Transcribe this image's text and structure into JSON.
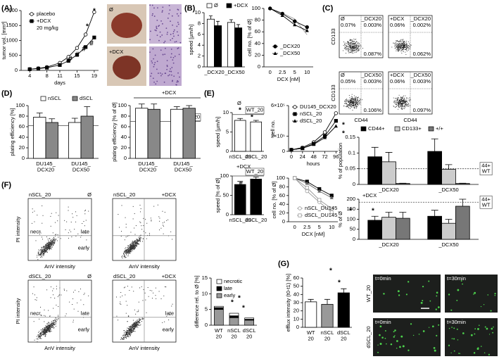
{
  "panel_labels": [
    "(A)",
    "(B)",
    "(C)",
    "(D)",
    "(E)",
    "(F)",
    "(G)"
  ],
  "photos_a": {
    "labels": [
      "Ø",
      "+DCX"
    ]
  },
  "flow_c": {
    "ylabel": "CD133",
    "xlabel": "CD44",
    "plots": [
      {
        "tag": "Ø",
        "name": "_DCX20",
        "quadrants": [
          "0.07%",
          "0.003%",
          "0.087%"
        ]
      },
      {
        "tag": "+DCX",
        "name": "_DCX20",
        "quadrants": [
          "0.06%",
          "0.002%",
          "0.062%"
        ]
      },
      {
        "tag": "Ø",
        "name": "_DCX50",
        "quadrants": [
          "0.05%",
          "0.003%",
          "0.106%"
        ]
      },
      {
        "tag": "+DCX",
        "name": "_DCX50",
        "quadrants": [
          "0.06%",
          "0.003%",
          "0.097%"
        ]
      }
    ]
  },
  "flow_f": {
    "ylabel": "PI intensity",
    "xlabel": "AnV intensity",
    "plots": [
      {
        "name": "nSCL_20",
        "tag": "Ø",
        "regions": {
          "necrotic": "necr.",
          "late": "late",
          "early": "early"
        }
      },
      {
        "name": "nSCL_20",
        "tag": "+DCX"
      },
      {
        "name": "dSCL_20",
        "tag": "Ø",
        "regions": {
          "necrotic": "necr.",
          "late": "late",
          "early": "early"
        }
      },
      {
        "name": "dSCL_20",
        "tag": "+DCX",
        "regions": {
          "late": "late",
          "early": "early"
        }
      }
    ]
  },
  "micrographs_g": {
    "times": [
      "t=0min",
      "t=30min"
    ],
    "rows": [
      "WT_20",
      "dSCL_20"
    ]
  },
  "chart_data": [
    {
      "type": "line",
      "xlabel": "days",
      "ylabel": "tumor vol. [mm³]",
      "x": [
        4,
        6,
        8,
        11,
        13,
        15,
        17,
        19
      ],
      "xlim": [
        2,
        20
      ],
      "xticks": [
        4,
        8,
        11,
        15,
        19
      ],
      "ylim": [
        0,
        2000
      ],
      "yticks": [
        0,
        500,
        1000,
        1500,
        2000
      ],
      "series": [
        {
          "name": "placebo",
          "marker": "open-circle",
          "color": "#000",
          "values": [
            40,
            70,
            110,
            250,
            450,
            750,
            1200,
            1950
          ]
        },
        {
          "name": "+DCX",
          "marker": "filled-square",
          "color": "#000",
          "values": [
            40,
            60,
            90,
            180,
            320,
            520,
            780,
            1100
          ]
        }
      ],
      "labels": [
        "20 mg/kg"
      ],
      "annotations": [
        "#",
        "#",
        "#",
        "#",
        "*",
        "*"
      ]
    },
    {
      "type": "bar",
      "ylabel": "speed [µm/h]",
      "categories": [
        "_DCX20",
        "_DCX50"
      ],
      "ylim": [
        0,
        10
      ],
      "yticks": [
        0,
        2,
        4,
        6,
        8,
        10
      ],
      "series": [
        {
          "name": "Ø",
          "color": "#ffffff",
          "values": [
            8.8,
            8.2
          ],
          "errors": [
            0.6,
            0.5
          ]
        },
        {
          "name": "+DCX",
          "color": "#000000",
          "values": [
            7.6,
            7.2
          ],
          "errors": [
            0.8,
            0.6
          ]
        }
      ]
    },
    {
      "type": "line",
      "xlabel": "DCX [nM]",
      "ylabel": "cell no. [% of Ø]",
      "categories": [
        "0",
        "2.5",
        "5",
        "10"
      ],
      "ylim": [
        0,
        100
      ],
      "yticks": [
        0,
        20,
        40,
        60,
        80,
        100
      ],
      "series": [
        {
          "marker": "none",
          "color": "#999999",
          "values": [
            100,
            92,
            82,
            55
          ]
        },
        {
          "name": "_DCX20",
          "marker": "filled-circle",
          "color": "#000",
          "values": [
            100,
            91,
            78,
            68
          ]
        },
        {
          "name": "_DCX50",
          "marker": "filled-triangle",
          "color": "#000",
          "values": [
            100,
            88,
            72,
            62
          ]
        }
      ]
    },
    {
      "type": "bar",
      "ylabel": "% of population",
      "categories": [
        "_DCX20",
        "_DCX50"
      ],
      "ylim": [
        0,
        0.15
      ],
      "yticks": [
        0,
        0.05,
        0.1,
        0.15
      ],
      "series": [
        {
          "name": "CD44+",
          "color": "#000000",
          "values": [
            0.088,
            0.105
          ],
          "errors": [
            0.03,
            0.04
          ]
        },
        {
          "name": "CD133+",
          "color": "#cccccc",
          "values": [
            0.072,
            0.048
          ],
          "errors": [
            0.03,
            0.015
          ]
        },
        {
          "name": "+/+",
          "color": "#777777",
          "values": [
            0.003,
            0.003
          ],
          "errors": [
            0.001,
            0.001
          ]
        }
      ],
      "reference_lines": [
        {
          "value": 0.05,
          "style": "dashed",
          "label_lines": [
            "44+",
            "WT"
          ]
        }
      ]
    },
    {
      "type": "bar",
      "ylabel": "% of Ø",
      "categories": [
        "_DCX20",
        "_DCX50"
      ],
      "ylim": [
        0,
        200
      ],
      "yticks": [
        0,
        50,
        100,
        150,
        200
      ],
      "series": [
        {
          "color": "#000000",
          "values": [
            95,
            115
          ],
          "errors": [
            20,
            30
          ]
        },
        {
          "color": "#cccccc",
          "values": [
            110,
            80
          ],
          "errors": [
            25,
            20
          ]
        },
        {
          "color": "#777777",
          "values": [
            105,
            165
          ],
          "errors": [
            30,
            35
          ]
        }
      ],
      "reference_lines": [
        {
          "value": 185,
          "style": "dashed",
          "label_lines": [
            "44+",
            "WT"
          ]
        }
      ],
      "labels": [
        "+DCX"
      ],
      "annotations": [
        "*"
      ]
    },
    {
      "type": "bar",
      "ylabel": "plating efficiency [%]",
      "categories": [
        [
          "DU145_",
          "DCX20"
        ],
        [
          "DU145_",
          "DCX50"
        ]
      ],
      "ylim": [
        0,
        100
      ],
      "yticks": [
        0,
        20,
        40,
        60,
        80,
        100
      ],
      "series": [
        {
          "name": "nSCL",
          "color": "#ffffff",
          "values": [
            78,
            68
          ],
          "errors": [
            8,
            8
          ]
        },
        {
          "name": "dSCL",
          "color": "#888888",
          "values": [
            68,
            80
          ],
          "errors": [
            7,
            18
          ]
        }
      ],
      "reference_lines": [
        {
          "value": 62,
          "style": "solid"
        }
      ]
    },
    {
      "type": "bar",
      "ylabel": "plating efficiency [% of Ø]",
      "categories": [
        [
          "DU145_",
          "DCX20"
        ],
        [
          "DU145_",
          "DCX50"
        ]
      ],
      "ylim": [
        0,
        100
      ],
      "yticks": [
        0,
        20,
        40,
        60,
        80,
        100
      ],
      "series": [
        {
          "color": "#ffffff",
          "values": [
            95,
            93
          ],
          "errors": [
            8,
            5
          ]
        },
        {
          "color": "#888888",
          "values": [
            93,
            95
          ],
          "errors": [
            10,
            5
          ]
        }
      ],
      "reference_lines": [
        {
          "value": 70,
          "style": "solid",
          "label_lines": [
            "WT_20"
          ]
        }
      ],
      "labels": [
        "+DCX"
      ]
    },
    {
      "type": "bar",
      "ylabel": "speed [µm/h]",
      "categories": [
        "nSCL_20",
        "dSCL_20"
      ],
      "ylim": [
        0,
        10
      ],
      "yticks": [
        0,
        5,
        10
      ],
      "series": [
        {
          "color": "#ffffff",
          "values": [
            8,
            7.6
          ],
          "errors": [
            0.5,
            0.4
          ]
        }
      ],
      "reference_lines": [
        {
          "value": 9.5,
          "style": "solid",
          "label_lines": [
            "WT_20"
          ]
        }
      ],
      "labels": [
        "Ø"
      ],
      "annotations": [
        "*",
        "*"
      ]
    },
    {
      "type": "bar",
      "ylabel": "speed [% of Ø]",
      "categories": [
        "nSCL_20",
        "dSCL_20"
      ],
      "ylim": [
        0,
        100
      ],
      "yticks": [
        0,
        50,
        100
      ],
      "series": [
        {
          "color": "#000000",
          "values": [
            78,
            92
          ],
          "errors": [
            8,
            5
          ]
        }
      ],
      "reference_lines": [
        {
          "value": 100,
          "style": "solid",
          "label_lines": [
            "WT_20"
          ]
        }
      ],
      "labels": [
        "+DCX"
      ],
      "annotations": [
        "#"
      ]
    },
    {
      "type": "line",
      "xlabel": "hours",
      "ylabel": "cell no.",
      "x": [
        0,
        24,
        48,
        72,
        96
      ],
      "xlim": [
        -6,
        100
      ],
      "xticks": [
        0,
        24,
        48,
        72,
        96
      ],
      "ylim": [
        0,
        600000
      ],
      "yticks": [
        0,
        {
          "value": 200000,
          "label": "2×10⁵"
        },
        {
          "value": 600000,
          "label": "6×10⁵"
        }
      ],
      "series": [
        {
          "name": "DU145_DCX20",
          "marker": "open-circle",
          "color": "#000",
          "values": [
            20000,
            50000,
            120000,
            250000,
            500000
          ]
        },
        {
          "name": "nSCL_20",
          "marker": "filled-square",
          "color": "#000",
          "values": [
            20000,
            40000,
            100000,
            200000,
            400000
          ]
        },
        {
          "name": "dSCL_20",
          "marker": "filled-triangle",
          "color": "#000",
          "values": [
            20000,
            40000,
            90000,
            180000,
            330000
          ]
        }
      ],
      "annotations": [
        "*",
        "*"
      ]
    },
    {
      "type": "line",
      "xlabel": "DCX [nM]",
      "ylabel": "cell no. [% of Ø]",
      "categories": [
        "0",
        "2.5",
        "5",
        "10"
      ],
      "ylim": [
        0,
        100
      ],
      "yticks": [
        0,
        20,
        40,
        60,
        80,
        100
      ],
      "series": [
        {
          "marker": "filled-square",
          "color": "#000",
          "values": [
            100,
            92,
            75,
            60
          ]
        },
        {
          "marker": "filled-triangle",
          "color": "#666",
          "values": [
            100,
            88,
            70,
            55
          ]
        },
        {
          "name": "nSCL_DU145",
          "marker": "open-circle",
          "color": "#999",
          "values": [
            100,
            70,
            45,
            22
          ]
        },
        {
          "name": "dSCL_DU145",
          "marker": "open-square",
          "color": "#999",
          "values": [
            100,
            78,
            50,
            30
          ]
        }
      ],
      "annotations": [
        "*"
      ]
    },
    {
      "type": "stacked_bar",
      "ylabel": "difference rel. to Ø [%]",
      "categories": [
        [
          "WT",
          "20"
        ],
        [
          "nSCL",
          "20"
        ],
        [
          "dSCL",
          "20"
        ]
      ],
      "ylim": [
        0,
        15
      ],
      "yticks": [
        0,
        5,
        10,
        15
      ],
      "series": [
        {
          "name": "early",
          "color": "#999999",
          "values": [
            5,
            2.4,
            1.6
          ]
        },
        {
          "name": "late",
          "color": "#000000",
          "values": [
            0.6,
            0.6,
            0.3
          ]
        },
        {
          "name": "necrotic",
          "color": "#ffffff",
          "values": [
            0.4,
            0.8,
            0.4
          ]
        }
      ],
      "annotations": [
        "*",
        "*",
        "*"
      ]
    },
    {
      "type": "bar",
      "ylabel": "efflux intensity (t0-t1) [%]",
      "categories": [
        [
          "WT",
          "20"
        ],
        [
          "nSCL",
          "20"
        ],
        [
          "dSCL",
          "20"
        ]
      ],
      "ylim": [
        0,
        60
      ],
      "yticks": [
        0,
        10,
        20,
        30,
        40,
        50,
        60
      ],
      "series": [
        {
          "colors": [
            "#ffffff",
            "#999999",
            "#000000"
          ],
          "values": [
            31,
            28,
            42
          ],
          "errors": [
            3,
            6,
            5
          ]
        }
      ],
      "annotations": [
        "*",
        "*"
      ]
    }
  ]
}
